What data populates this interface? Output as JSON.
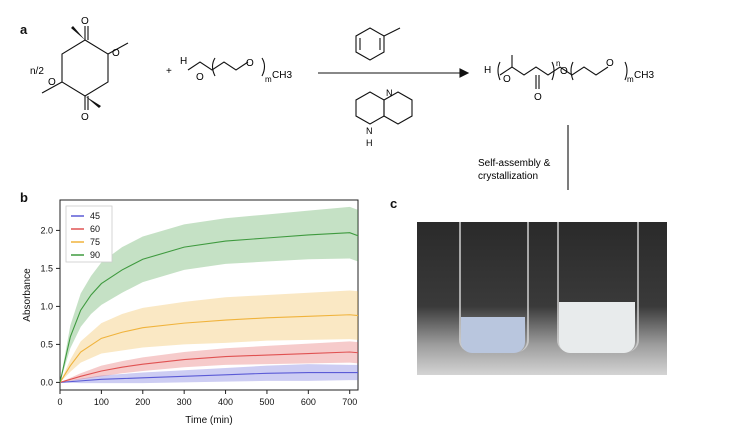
{
  "panels": {
    "a": "a",
    "b": "b",
    "c": "c"
  },
  "scheme": {
    "coefficient": "n/2",
    "plus": "+",
    "h_left": "H",
    "o_left": "O",
    "o_right": "O",
    "m_left": "m",
    "ch3_left": "CH3",
    "o_ring_1": "O",
    "o_ring_2": "O",
    "o_ring_3": "O",
    "o_ring_4": "O",
    "catalyst_n": "N",
    "catalyst_nh_n": "N",
    "catalyst_h": "H",
    "prod_h": "H",
    "prod_o1": "O",
    "prod_o_carbonyl": "O",
    "prod_o2": "O",
    "prod_o3": "O",
    "prod_n": "n",
    "prod_m": "m",
    "prod_ch3": "CH3",
    "arrow_label": "Self-assembly & crystallization",
    "arrow_label_line1": "Self-assembly &",
    "arrow_label_line2": "crystallization"
  },
  "chart_data": {
    "type": "line",
    "xlabel": "Time (min)",
    "ylabel": "Absorbance",
    "xlim": [
      0,
      720
    ],
    "ylim": [
      -0.1,
      2.4
    ],
    "xticks": [
      0,
      100,
      200,
      300,
      400,
      500,
      600,
      700
    ],
    "yticks": [
      0.0,
      0.5,
      1.0,
      1.5,
      2.0
    ],
    "legend_position": "top-left",
    "series": [
      {
        "name": "45",
        "color": "#5b5bd6",
        "x": [
          0,
          50,
          100,
          150,
          200,
          300,
          400,
          500,
          600,
          700,
          720
        ],
        "y": [
          0.0,
          0.02,
          0.04,
          0.05,
          0.06,
          0.08,
          0.1,
          0.12,
          0.13,
          0.13,
          0.13
        ],
        "band": [
          0.0,
          0.03,
          0.05,
          0.06,
          0.07,
          0.08,
          0.09,
          0.1,
          0.11,
          0.1,
          0.1
        ]
      },
      {
        "name": "60",
        "color": "#e05252",
        "x": [
          0,
          50,
          100,
          150,
          200,
          300,
          400,
          500,
          600,
          700,
          720
        ],
        "y": [
          0.0,
          0.08,
          0.15,
          0.2,
          0.24,
          0.3,
          0.34,
          0.36,
          0.38,
          0.4,
          0.39
        ],
        "band": [
          0.0,
          0.04,
          0.07,
          0.08,
          0.09,
          0.1,
          0.11,
          0.12,
          0.13,
          0.14,
          0.14
        ]
      },
      {
        "name": "75",
        "color": "#f0b33c",
        "x": [
          0,
          25,
          50,
          100,
          150,
          200,
          300,
          400,
          500,
          600,
          700,
          720
        ],
        "y": [
          0.0,
          0.22,
          0.4,
          0.58,
          0.66,
          0.72,
          0.78,
          0.82,
          0.85,
          0.87,
          0.89,
          0.88
        ],
        "band": [
          0.0,
          0.08,
          0.14,
          0.2,
          0.24,
          0.26,
          0.28,
          0.3,
          0.3,
          0.31,
          0.32,
          0.32
        ]
      },
      {
        "name": "90",
        "color": "#3f9a3f",
        "x": [
          0,
          25,
          50,
          75,
          100,
          150,
          200,
          300,
          400,
          500,
          600,
          700,
          720
        ],
        "y": [
          0.0,
          0.6,
          0.95,
          1.15,
          1.3,
          1.48,
          1.62,
          1.78,
          1.86,
          1.9,
          1.94,
          1.97,
          1.93
        ],
        "band": [
          0.0,
          0.15,
          0.22,
          0.25,
          0.28,
          0.3,
          0.3,
          0.3,
          0.3,
          0.31,
          0.32,
          0.34,
          0.34
        ]
      }
    ]
  }
}
